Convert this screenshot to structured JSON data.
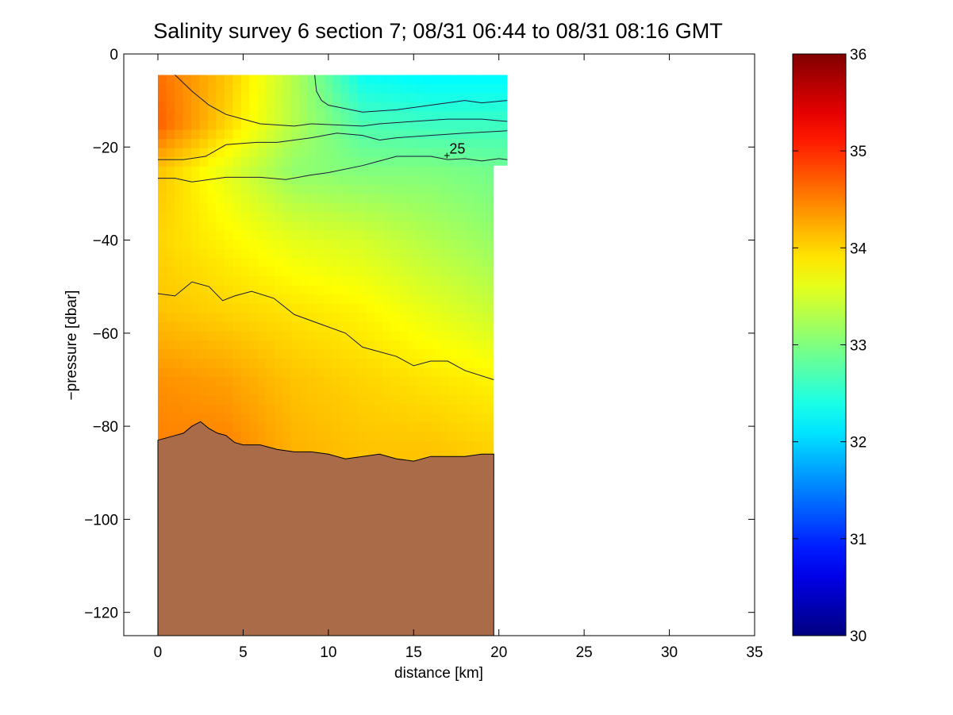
{
  "chart_data": {
    "type": "heatmap",
    "title": "Salinity survey 6 section 7; 08/31 06:44 to 08/31 08:16 GMT",
    "xlabel": "distance [km]",
    "ylabel": "−pressure [dbar]",
    "xlim": [
      -2,
      35
    ],
    "ylim": [
      -125,
      0
    ],
    "xticks": [
      0,
      5,
      10,
      15,
      20,
      25,
      30,
      35
    ],
    "xtick_labels": [
      "0",
      "5",
      "10",
      "15",
      "20",
      "25",
      "30",
      "35"
    ],
    "yticks": [
      0,
      -20,
      -40,
      -60,
      -80,
      -100,
      -120
    ],
    "ytick_labels": [
      "0",
      "−20",
      "−40",
      "−60",
      "−80",
      "−100",
      "−120"
    ],
    "colorbar": {
      "range": [
        30,
        36
      ],
      "ticks": [
        30,
        31,
        32,
        33,
        34,
        35,
        36
      ],
      "tick_labels": [
        "30",
        "31",
        "32",
        "33",
        "34",
        "35",
        "36"
      ],
      "colormap": "jet"
    },
    "section": {
      "x_start": 0,
      "x_end": 20.5,
      "top_depth": -4.5,
      "data_end_x": 19.7
    },
    "salinity_grid": {
      "x": [
        0,
        4,
        8,
        12,
        16,
        20.5
      ],
      "depth": [
        -4.5,
        -15,
        -25,
        -40,
        -55,
        -70,
        -85
      ],
      "values": [
        [
          34.6,
          34.1,
          33.3,
          32.3,
          32.2,
          32.2
        ],
        [
          34.7,
          34.0,
          33.3,
          32.7,
          32.6,
          32.6
        ],
        [
          34.1,
          33.6,
          33.1,
          33.0,
          33.0,
          32.9
        ],
        [
          34.0,
          33.8,
          33.6,
          33.5,
          33.3,
          33.1
        ],
        [
          34.1,
          34.0,
          33.9,
          33.8,
          33.6,
          33.4
        ],
        [
          34.4,
          34.3,
          34.1,
          34.0,
          33.9,
          33.8
        ],
        [
          34.5,
          34.5,
          34.2,
          34.1,
          34.1,
          34.0
        ]
      ]
    },
    "contours": [
      {
        "x": [
          1,
          2,
          3,
          4,
          5,
          6,
          8,
          9
        ],
        "y": [
          -4.5,
          -8,
          -11,
          -13,
          -14,
          -15,
          -15.5,
          -15
        ]
      },
      {
        "x": [
          9.2,
          9.3,
          9.6,
          10,
          12,
          14,
          16,
          18,
          19,
          20.5
        ],
        "y": [
          -4.5,
          -8,
          -10,
          -11,
          -12.5,
          -12,
          -11,
          -10,
          -10.5,
          -10
        ]
      },
      {
        "x": [
          9,
          12,
          13,
          15,
          17,
          19,
          20.5
        ],
        "y": [
          -15,
          -15.5,
          -15,
          -14.5,
          -14,
          -14,
          -14.5
        ]
      },
      {
        "x": [
          0,
          1.5,
          2.8,
          4,
          5.8,
          7,
          9,
          10.5,
          12,
          13,
          14,
          16,
          18,
          20.5
        ],
        "y": [
          -22.7,
          -22.7,
          -22,
          -19.5,
          -19,
          -19,
          -18,
          -17,
          -17.5,
          -18.5,
          -18,
          -17.5,
          -17,
          -16.5
        ]
      },
      {
        "x": [
          0,
          1,
          2,
          3,
          4,
          6,
          7.5,
          9,
          10,
          12,
          13,
          14,
          15,
          16,
          17,
          18,
          19,
          20,
          20.5
        ],
        "y": [
          -26.7,
          -26.7,
          -27.5,
          -27,
          -26.5,
          -26.5,
          -27,
          -26,
          -25.5,
          -24,
          -23,
          -22,
          -22,
          -22,
          -22.7,
          -22.5,
          -23,
          -22.5,
          -22.7
        ]
      },
      {
        "x": [
          0,
          1,
          2,
          3,
          3.8,
          4.5,
          5.5,
          6.8,
          8,
          9.5,
          11,
          12,
          14,
          15,
          16,
          17,
          18,
          19.7
        ],
        "y": [
          -51.5,
          -52,
          -49,
          -50,
          -53,
          -52,
          -51,
          -52.5,
          -56,
          -58,
          -60,
          -63,
          -65,
          -67,
          -66,
          -66,
          -68,
          -70
        ]
      }
    ],
    "contour_labels": [
      {
        "text": "25",
        "x": 17.1,
        "y": -20.2
      }
    ],
    "bathymetry": {
      "x": [
        0,
        0.5,
        1.0,
        1.5,
        2.0,
        2.5,
        3.0,
        3.5,
        4.0,
        4.5,
        5.0,
        6.0,
        7.0,
        8.0,
        9.0,
        10.0,
        11.0,
        12.0,
        13.0,
        14.0,
        15.0,
        16.0,
        17.0,
        18.0,
        19.0,
        19.7
      ],
      "depth": [
        -83,
        -82.5,
        -82,
        -81.5,
        -80,
        -79,
        -80.5,
        -81.5,
        -82,
        -83.5,
        -84,
        -84,
        -85,
        -85.5,
        -85.5,
        -86,
        -87,
        -86.5,
        -86,
        -87,
        -87.5,
        -86.5,
        -86.5,
        -86.5,
        -86,
        -86
      ]
    }
  }
}
